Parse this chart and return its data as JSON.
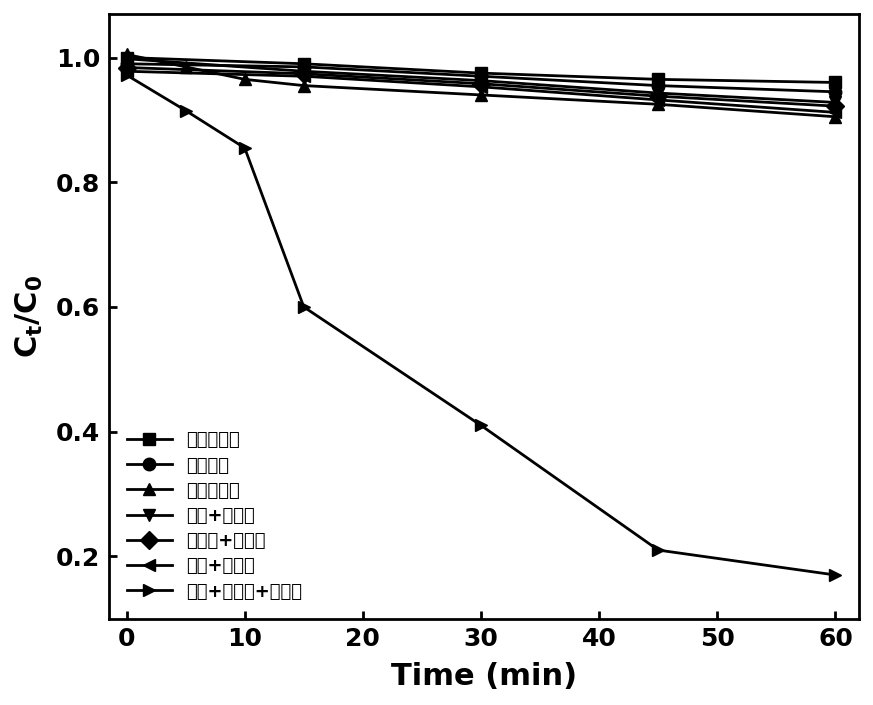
{
  "series": [
    {
      "label": "单独可见光",
      "x": [
        0,
        15,
        30,
        45,
        60
      ],
      "y": [
        1.0,
        0.99,
        0.975,
        0.965,
        0.96
      ],
      "marker": "s",
      "color": "#000000"
    },
    {
      "label": "单独臭氧",
      "x": [
        0,
        15,
        30,
        45,
        60
      ],
      "y": [
        0.99,
        0.985,
        0.97,
        0.955,
        0.945
      ],
      "marker": "o",
      "color": "#000000"
    },
    {
      "label": "单独催化剂",
      "x": [
        0,
        5,
        10,
        15,
        30,
        45,
        60
      ],
      "y": [
        1.005,
        0.985,
        0.965,
        0.955,
        0.94,
        0.925,
        0.905
      ],
      "marker": "^",
      "color": "#000000"
    },
    {
      "label": "臭氧+催化剂",
      "x": [
        0,
        15,
        30,
        45,
        60
      ],
      "y": [
        0.998,
        0.978,
        0.963,
        0.943,
        0.928
      ],
      "marker": "v",
      "color": "#000000"
    },
    {
      "label": "可见光+催化剂",
      "x": [
        0,
        15,
        30,
        45,
        60
      ],
      "y": [
        0.984,
        0.974,
        0.958,
        0.938,
        0.922
      ],
      "marker": "D",
      "color": "#000000"
    },
    {
      "label": "臭氧+可见光",
      "x": [
        0,
        15,
        30,
        45,
        60
      ],
      "y": [
        0.978,
        0.97,
        0.953,
        0.932,
        0.912
      ],
      "marker": "<",
      "color": "#000000"
    },
    {
      "label": "臭氧+可见光+催化剂",
      "x": [
        0,
        5,
        10,
        15,
        30,
        45,
        60
      ],
      "y": [
        0.972,
        0.915,
        0.855,
        0.6,
        0.41,
        0.21,
        0.17
      ],
      "marker": ">",
      "color": "#000000"
    }
  ],
  "xlabel": "Time (min)",
  "ylabel_line1": "C",
  "ylabel_subscript": "t",
  "ylabel_line2": "/C",
  "ylabel_subscript2": "0",
  "xlim": [
    -1.5,
    62
  ],
  "ylim": [
    0.1,
    1.07
  ],
  "xticks": [
    0,
    10,
    20,
    30,
    40,
    50,
    60
  ],
  "yticks": [
    0.2,
    0.4,
    0.6,
    0.8,
    1.0
  ],
  "legend_loc": "lower left",
  "bg_color": "#ffffff",
  "marker_size": 9,
  "linewidth": 2.0,
  "tick_fontsize": 18,
  "axis_label_fontsize": 22,
  "legend_fontsize": 13
}
